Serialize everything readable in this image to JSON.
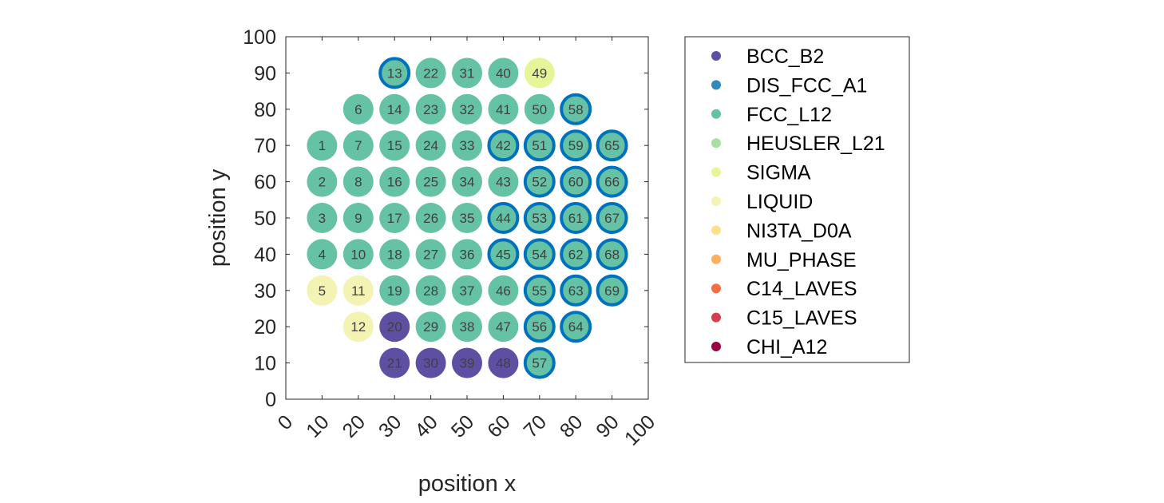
{
  "chart_data": {
    "type": "scatter",
    "title": "",
    "xlabel": "position x",
    "ylabel": "position y",
    "xlim": [
      0,
      100
    ],
    "ylim": [
      0,
      100
    ],
    "xticks": [
      0,
      10,
      20,
      30,
      40,
      50,
      60,
      70,
      80,
      90,
      100
    ],
    "yticks": [
      0,
      10,
      20,
      30,
      40,
      50,
      60,
      70,
      80,
      90,
      100
    ],
    "grid": false,
    "legend_position": "outside-right",
    "legend": [
      {
        "name": "BCC_B2",
        "color": "#5E4FA2"
      },
      {
        "name": "DIS_FCC_A1",
        "color": "#3288BD"
      },
      {
        "name": "FCC_L12",
        "color": "#66C2A5"
      },
      {
        "name": "HEUSLER_L21",
        "color": "#ABDDA4"
      },
      {
        "name": "SIGMA",
        "color": "#E6F598"
      },
      {
        "name": "LIQUID",
        "color": "#F3F3B3"
      },
      {
        "name": "NI3TA_D0A",
        "color": "#FEE08B"
      },
      {
        "name": "MU_PHASE",
        "color": "#FDAE61"
      },
      {
        "name": "C14_LAVES",
        "color": "#F46D43"
      },
      {
        "name": "C15_LAVES",
        "color": "#D53E4F"
      },
      {
        "name": "CHI_A12",
        "color": "#9E0142"
      }
    ],
    "outlined_phase_color": "#0072BD",
    "points": [
      {
        "id": "1",
        "x": 10,
        "y": 70,
        "phase": "FCC_L12",
        "outlined": false
      },
      {
        "id": "2",
        "x": 10,
        "y": 60,
        "phase": "FCC_L12",
        "outlined": false
      },
      {
        "id": "3",
        "x": 10,
        "y": 50,
        "phase": "FCC_L12",
        "outlined": false
      },
      {
        "id": "4",
        "x": 10,
        "y": 40,
        "phase": "FCC_L12",
        "outlined": false
      },
      {
        "id": "5",
        "x": 10,
        "y": 30,
        "phase": "LIQUID",
        "outlined": false
      },
      {
        "id": "6",
        "x": 20,
        "y": 80,
        "phase": "FCC_L12",
        "outlined": false
      },
      {
        "id": "7",
        "x": 20,
        "y": 70,
        "phase": "FCC_L12",
        "outlined": false
      },
      {
        "id": "8",
        "x": 20,
        "y": 60,
        "phase": "FCC_L12",
        "outlined": false
      },
      {
        "id": "9",
        "x": 20,
        "y": 50,
        "phase": "FCC_L12",
        "outlined": false
      },
      {
        "id": "10",
        "x": 20,
        "y": 40,
        "phase": "FCC_L12",
        "outlined": false
      },
      {
        "id": "11",
        "x": 20,
        "y": 30,
        "phase": "LIQUID",
        "outlined": false
      },
      {
        "id": "12",
        "x": 20,
        "y": 20,
        "phase": "LIQUID",
        "outlined": false
      },
      {
        "id": "13",
        "x": 30,
        "y": 90,
        "phase": "FCC_L12",
        "outlined": true
      },
      {
        "id": "14",
        "x": 30,
        "y": 80,
        "phase": "FCC_L12",
        "outlined": false
      },
      {
        "id": "15",
        "x": 30,
        "y": 70,
        "phase": "FCC_L12",
        "outlined": false
      },
      {
        "id": "16",
        "x": 30,
        "y": 60,
        "phase": "FCC_L12",
        "outlined": false
      },
      {
        "id": "17",
        "x": 30,
        "y": 50,
        "phase": "FCC_L12",
        "outlined": false
      },
      {
        "id": "18",
        "x": 30,
        "y": 40,
        "phase": "FCC_L12",
        "outlined": false
      },
      {
        "id": "19",
        "x": 30,
        "y": 30,
        "phase": "FCC_L12",
        "outlined": false
      },
      {
        "id": "20",
        "x": 30,
        "y": 20,
        "phase": "BCC_B2",
        "outlined": false
      },
      {
        "id": "21",
        "x": 30,
        "y": 10,
        "phase": "BCC_B2",
        "outlined": false
      },
      {
        "id": "22",
        "x": 40,
        "y": 90,
        "phase": "FCC_L12",
        "outlined": false
      },
      {
        "id": "23",
        "x": 40,
        "y": 80,
        "phase": "FCC_L12",
        "outlined": false
      },
      {
        "id": "24",
        "x": 40,
        "y": 70,
        "phase": "FCC_L12",
        "outlined": false
      },
      {
        "id": "25",
        "x": 40,
        "y": 60,
        "phase": "FCC_L12",
        "outlined": false
      },
      {
        "id": "26",
        "x": 40,
        "y": 50,
        "phase": "FCC_L12",
        "outlined": false
      },
      {
        "id": "27",
        "x": 40,
        "y": 40,
        "phase": "FCC_L12",
        "outlined": false
      },
      {
        "id": "28",
        "x": 40,
        "y": 30,
        "phase": "FCC_L12",
        "outlined": false
      },
      {
        "id": "29",
        "x": 40,
        "y": 20,
        "phase": "FCC_L12",
        "outlined": false
      },
      {
        "id": "30",
        "x": 40,
        "y": 10,
        "phase": "BCC_B2",
        "outlined": false
      },
      {
        "id": "31",
        "x": 50,
        "y": 90,
        "phase": "FCC_L12",
        "outlined": false
      },
      {
        "id": "32",
        "x": 50,
        "y": 80,
        "phase": "FCC_L12",
        "outlined": false
      },
      {
        "id": "33",
        "x": 50,
        "y": 70,
        "phase": "FCC_L12",
        "outlined": false
      },
      {
        "id": "34",
        "x": 50,
        "y": 60,
        "phase": "FCC_L12",
        "outlined": false
      },
      {
        "id": "35",
        "x": 50,
        "y": 50,
        "phase": "FCC_L12",
        "outlined": false
      },
      {
        "id": "36",
        "x": 50,
        "y": 40,
        "phase": "FCC_L12",
        "outlined": false
      },
      {
        "id": "37",
        "x": 50,
        "y": 30,
        "phase": "FCC_L12",
        "outlined": false
      },
      {
        "id": "38",
        "x": 50,
        "y": 20,
        "phase": "FCC_L12",
        "outlined": false
      },
      {
        "id": "39",
        "x": 50,
        "y": 10,
        "phase": "BCC_B2",
        "outlined": false
      },
      {
        "id": "40",
        "x": 60,
        "y": 90,
        "phase": "FCC_L12",
        "outlined": false
      },
      {
        "id": "41",
        "x": 60,
        "y": 80,
        "phase": "FCC_L12",
        "outlined": false
      },
      {
        "id": "42",
        "x": 60,
        "y": 70,
        "phase": "FCC_L12",
        "outlined": true
      },
      {
        "id": "43",
        "x": 60,
        "y": 60,
        "phase": "FCC_L12",
        "outlined": false
      },
      {
        "id": "44",
        "x": 60,
        "y": 50,
        "phase": "FCC_L12",
        "outlined": true
      },
      {
        "id": "45",
        "x": 60,
        "y": 40,
        "phase": "FCC_L12",
        "outlined": true
      },
      {
        "id": "46",
        "x": 60,
        "y": 30,
        "phase": "FCC_L12",
        "outlined": false
      },
      {
        "id": "47",
        "x": 60,
        "y": 20,
        "phase": "FCC_L12",
        "outlined": false
      },
      {
        "id": "48",
        "x": 60,
        "y": 10,
        "phase": "BCC_B2",
        "outlined": false
      },
      {
        "id": "49",
        "x": 70,
        "y": 90,
        "phase": "SIGMA",
        "outlined": false
      },
      {
        "id": "50",
        "x": 70,
        "y": 80,
        "phase": "FCC_L12",
        "outlined": false
      },
      {
        "id": "51",
        "x": 70,
        "y": 70,
        "phase": "FCC_L12",
        "outlined": true
      },
      {
        "id": "52",
        "x": 70,
        "y": 60,
        "phase": "FCC_L12",
        "outlined": true
      },
      {
        "id": "53",
        "x": 70,
        "y": 50,
        "phase": "FCC_L12",
        "outlined": true
      },
      {
        "id": "54",
        "x": 70,
        "y": 40,
        "phase": "FCC_L12",
        "outlined": true
      },
      {
        "id": "55",
        "x": 70,
        "y": 30,
        "phase": "FCC_L12",
        "outlined": true
      },
      {
        "id": "56",
        "x": 70,
        "y": 20,
        "phase": "FCC_L12",
        "outlined": true
      },
      {
        "id": "57",
        "x": 70,
        "y": 10,
        "phase": "FCC_L12",
        "outlined": true
      },
      {
        "id": "58",
        "x": 80,
        "y": 80,
        "phase": "FCC_L12",
        "outlined": true
      },
      {
        "id": "59",
        "x": 80,
        "y": 70,
        "phase": "FCC_L12",
        "outlined": true
      },
      {
        "id": "60",
        "x": 80,
        "y": 60,
        "phase": "FCC_L12",
        "outlined": true
      },
      {
        "id": "61",
        "x": 80,
        "y": 50,
        "phase": "FCC_L12",
        "outlined": true
      },
      {
        "id": "62",
        "x": 80,
        "y": 40,
        "phase": "FCC_L12",
        "outlined": true
      },
      {
        "id": "63",
        "x": 80,
        "y": 30,
        "phase": "FCC_L12",
        "outlined": true
      },
      {
        "id": "64",
        "x": 80,
        "y": 20,
        "phase": "FCC_L12",
        "outlined": true
      },
      {
        "id": "65",
        "x": 90,
        "y": 70,
        "phase": "FCC_L12",
        "outlined": true
      },
      {
        "id": "66",
        "x": 90,
        "y": 60,
        "phase": "FCC_L12",
        "outlined": true
      },
      {
        "id": "67",
        "x": 90,
        "y": 50,
        "phase": "FCC_L12",
        "outlined": true
      },
      {
        "id": "68",
        "x": 90,
        "y": 40,
        "phase": "FCC_L12",
        "outlined": true
      },
      {
        "id": "69",
        "x": 90,
        "y": 30,
        "phase": "FCC_L12",
        "outlined": true
      }
    ]
  }
}
